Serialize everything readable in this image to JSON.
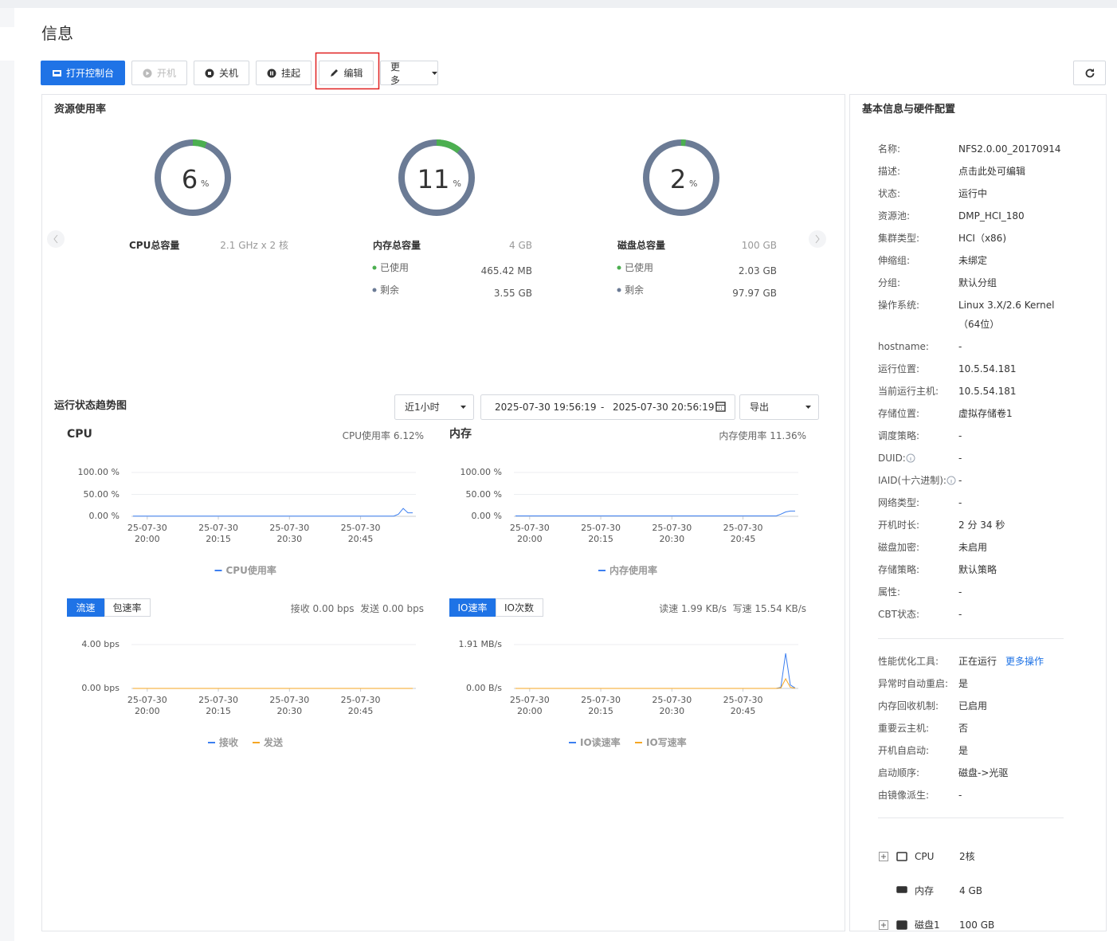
{
  "header": {
    "title": "信息"
  },
  "toolbar": {
    "buttons": [
      "打开控制台",
      "开机",
      "关机",
      "挂起",
      "编辑",
      "更多"
    ]
  },
  "resources": {
    "title": "资源使用率",
    "gauges": [
      {
        "value": 6,
        "unit": "%",
        "label": "CPU总容量",
        "total": "2.1 GHz x 2 核"
      },
      {
        "value": 11,
        "unit": "%",
        "label": "内存总容量",
        "total": "4 GB",
        "used_label": "已使用",
        "used": "465.42 MB",
        "free_label": "剩余",
        "free": "3.55 GB"
      },
      {
        "value": 2,
        "unit": "%",
        "label": "磁盘总容量",
        "total": "100 GB",
        "used_label": "已使用",
        "used": "2.03 GB",
        "free_label": "剩余",
        "free": "97.97 GB"
      }
    ]
  },
  "trend": {
    "title": "运行状态趋势图",
    "period": "近1小时",
    "start": "2025-07-30 19:56:19",
    "separator": "-",
    "end": "2025-07-30 20:56:19",
    "export": "导出",
    "charts": [
      {
        "type": "line",
        "title": "CPU",
        "summary": "CPU使用率 6.12%",
        "ylim": [
          0,
          100
        ],
        "yticks": [
          {
            "value": 0,
            "label": "0.00 %"
          },
          {
            "value": 50,
            "label": "50.00 %"
          },
          {
            "value": 100,
            "label": "100.00 %"
          }
        ],
        "xlim": [
          "19:56",
          "20:56"
        ],
        "xticks": [
          {
            "value": "20:00",
            "label": "25-07-30 20:00"
          },
          {
            "value": "20:15",
            "label": "25-07-30 20:15"
          },
          {
            "value": "20:30",
            "label": "25-07-30 20:30"
          },
          {
            "value": "20:45",
            "label": "25-07-30 20:45"
          }
        ],
        "x": [
          "19:57",
          "20:10",
          "20:20",
          "20:30",
          "20:40",
          "20:50",
          "20:52",
          "20:53",
          "20:54",
          "20:55",
          "20:56"
        ],
        "series": [
          {
            "name": "CPU使用率",
            "color": "#3c7ff0",
            "values": [
              0.5,
              0.5,
              0.5,
              0.5,
              0.5,
              0.5,
              0.6,
              5,
              18,
              8,
              8
            ]
          }
        ]
      },
      {
        "type": "line",
        "title": "内存",
        "summary": "内存使用率 11.36%",
        "ylim": [
          0,
          100
        ],
        "yticks": [
          {
            "value": 0,
            "label": "0.00 %"
          },
          {
            "value": 50,
            "label": "50.00 %"
          },
          {
            "value": 100,
            "label": "100.00 %"
          }
        ],
        "xlim": [
          "19:56",
          "20:56"
        ],
        "xticks": [
          {
            "value": "20:00",
            "label": "25-07-30 20:00"
          },
          {
            "value": "20:15",
            "label": "25-07-30 20:15"
          },
          {
            "value": "20:30",
            "label": "25-07-30 20:30"
          },
          {
            "value": "20:45",
            "label": "25-07-30 20:45"
          }
        ],
        "x": [
          "19:57",
          "20:10",
          "20:20",
          "20:30",
          "20:40",
          "20:50",
          "20:52",
          "20:53",
          "20:54",
          "20:55",
          "20:56"
        ],
        "series": [
          {
            "name": "内存使用率",
            "color": "#3c7ff0",
            "values": [
              1,
              1,
              1,
              1,
              1,
              1,
              1,
              5,
              10,
              12,
              12
            ]
          }
        ]
      },
      {
        "type": "line",
        "tabs": [
          "流速",
          "包速率"
        ],
        "summary": "接收 0.00 bps  发送 0.00 bps",
        "ylim": [
          0,
          4
        ],
        "yticks": [
          {
            "value": 0,
            "label": "0.00 bps"
          },
          {
            "value": 4,
            "label": "4.00 bps"
          }
        ],
        "xlim": [
          "19:56",
          "20:56"
        ],
        "xticks": [
          {
            "value": "20:00",
            "label": "25-07-30 20:00"
          },
          {
            "value": "20:15",
            "label": "25-07-30 20:15"
          },
          {
            "value": "20:30",
            "label": "25-07-30 20:30"
          },
          {
            "value": "20:45",
            "label": "25-07-30 20:45"
          }
        ],
        "x": [
          "19:57",
          "20:10",
          "20:20",
          "20:30",
          "20:40",
          "20:50",
          "20:52",
          "20:53",
          "20:54",
          "20:55",
          "20:56"
        ],
        "series": [
          {
            "name": "接收",
            "color": "#3c7ff0",
            "values": [
              0,
              0,
              0,
              0,
              0,
              0,
              0,
              0,
              0,
              0,
              0
            ]
          },
          {
            "name": "发送",
            "color": "#f5a623",
            "values": [
              0,
              0,
              0,
              0,
              0,
              0,
              0,
              0,
              0,
              0,
              0
            ]
          }
        ]
      },
      {
        "type": "line",
        "tabs": [
          "IO速率",
          "IO次数"
        ],
        "summary": "读速 1.99 KB/s  写速 15.54 KB/s",
        "ylim": [
          0,
          1.91
        ],
        "yticks": [
          {
            "value": 0,
            "label": "0.00 B/s"
          },
          {
            "value": 1.91,
            "label": "1.91 MB/s"
          }
        ],
        "xlim": [
          "19:56",
          "20:56"
        ],
        "xticks": [
          {
            "value": "20:00",
            "label": "25-07-30 20:00"
          },
          {
            "value": "20:15",
            "label": "25-07-30 20:15"
          },
          {
            "value": "20:30",
            "label": "25-07-30 20:30"
          },
          {
            "value": "20:45",
            "label": "25-07-30 20:45"
          }
        ],
        "x": [
          "19:57",
          "20:10",
          "20:20",
          "20:30",
          "20:40",
          "20:50",
          "20:52",
          "20:53",
          "20:54",
          "20:55",
          "20:56"
        ],
        "series": [
          {
            "name": "IO读速率",
            "color": "#3c7ff0",
            "values": [
              0,
              0,
              0,
              0,
              0,
              0,
              0,
              0.05,
              1.53,
              0.15,
              0.02
            ]
          },
          {
            "name": "IO写速率",
            "color": "#f5a623",
            "values": [
              0,
              0,
              0,
              0,
              0,
              0,
              0,
              0.02,
              0.42,
              0.05,
              0.01
            ]
          }
        ]
      }
    ]
  },
  "info": {
    "title": "基本信息与硬件配置",
    "basic": [
      [
        "名称:",
        "NFS2.0.00_20170914"
      ],
      [
        "描述:",
        "点击此处可编辑"
      ],
      [
        "状态:",
        "运行中"
      ],
      [
        "资源池:",
        "DMP_HCI_180"
      ],
      [
        "集群类型:",
        "HCI（x86)"
      ],
      [
        "伸缩组:",
        "未绑定"
      ],
      [
        "分组:",
        "默认分组"
      ],
      [
        "操作系统:",
        "Linux 3.X/2.6 Kernel（64位）"
      ],
      [
        "hostname:",
        "-"
      ],
      [
        "运行位置:",
        "10.5.54.181"
      ],
      [
        "当前运行主机:",
        "10.5.54.181"
      ],
      [
        "存储位置:",
        "虚拟存储卷1"
      ],
      [
        "调度策略:",
        "-"
      ],
      [
        "DUID:",
        "-"
      ],
      [
        "IAID(十六进制):",
        "-"
      ],
      [
        "网络类型:",
        "-"
      ],
      [
        "开机时长:",
        "2 分 34 秒"
      ],
      [
        "磁盘加密:",
        "未启用"
      ],
      [
        "存储策略:",
        "默认策略"
      ],
      [
        "属性:",
        "-"
      ],
      [
        "CBT状态:",
        "-"
      ]
    ],
    "advanced": [
      [
        "性能优化工具:",
        "正在运行"
      ],
      [
        "异常时自动重启:",
        "是"
      ],
      [
        "内存回收机制:",
        "已启用"
      ],
      [
        "重要云主机:",
        "否"
      ],
      [
        "开机自启动:",
        "是"
      ],
      [
        "启动顺序:",
        "磁盘->光驱"
      ],
      [
        "由镜像派生:",
        "-"
      ]
    ],
    "more_link": "更多操作",
    "hardware": [
      [
        "CPU",
        "2核"
      ],
      [
        "内存",
        "4 GB"
      ],
      [
        "磁盘1",
        "100 GB"
      ]
    ]
  }
}
